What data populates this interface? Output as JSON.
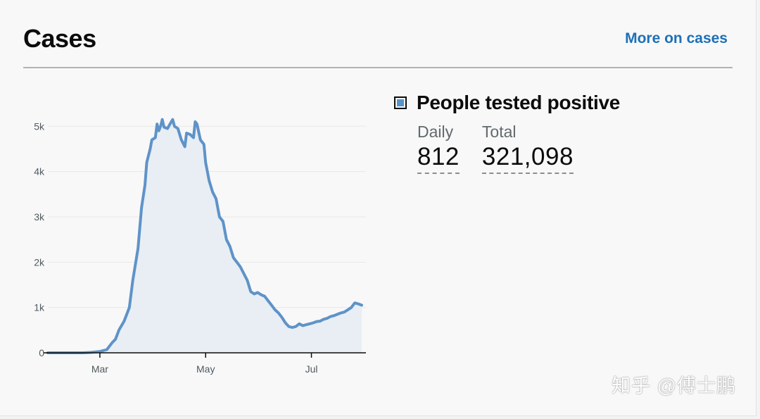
{
  "header": {
    "title": "Cases",
    "more_link": "More on cases"
  },
  "metric": {
    "title": "People tested positive",
    "daily_label": "Daily",
    "daily_value": "812",
    "total_label": "Total",
    "total_value": "321,098"
  },
  "watermark": "知乎 @傅士鹏",
  "colors": {
    "line": "#5e93c8",
    "area": "#e8eef4",
    "link": "#1d70b8",
    "grid": "#e8e8e8"
  },
  "chart_data": {
    "type": "area",
    "title": "",
    "xlabel": "",
    "ylabel": "",
    "y_ticks": [
      0,
      1000,
      2000,
      3000,
      4000,
      5000
    ],
    "y_tick_labels": [
      "0",
      "1k",
      "2k",
      "3k",
      "4k",
      "5k"
    ],
    "x_ticks": [
      "Mar",
      "May",
      "Jul"
    ],
    "ylim": [
      0,
      5300
    ],
    "grid": true,
    "series": [
      {
        "name": "",
        "points": [
          [
            "2020-01-31",
            0
          ],
          [
            "2020-02-10",
            0
          ],
          [
            "2020-02-20",
            0
          ],
          [
            "2020-02-25",
            10
          ],
          [
            "2020-03-01",
            30
          ],
          [
            "2020-03-05",
            70
          ],
          [
            "2020-03-08",
            220
          ],
          [
            "2020-03-10",
            300
          ],
          [
            "2020-03-12",
            500
          ],
          [
            "2020-03-15",
            700
          ],
          [
            "2020-03-18",
            1000
          ],
          [
            "2020-03-20",
            1600
          ],
          [
            "2020-03-23",
            2300
          ],
          [
            "2020-03-25",
            3200
          ],
          [
            "2020-03-27",
            3700
          ],
          [
            "2020-03-28",
            4200
          ],
          [
            "2020-03-30",
            4500
          ],
          [
            "2020-03-31",
            4700
          ],
          [
            "2020-04-02",
            4750
          ],
          [
            "2020-04-03",
            5050
          ],
          [
            "2020-04-04",
            4900
          ],
          [
            "2020-04-05",
            5000
          ],
          [
            "2020-04-06",
            5150
          ],
          [
            "2020-04-07",
            4980
          ],
          [
            "2020-04-09",
            4950
          ],
          [
            "2020-04-10",
            5020
          ],
          [
            "2020-04-12",
            5150
          ],
          [
            "2020-04-13",
            5000
          ],
          [
            "2020-04-15",
            4950
          ],
          [
            "2020-04-17",
            4700
          ],
          [
            "2020-04-19",
            4550
          ],
          [
            "2020-04-20",
            4850
          ],
          [
            "2020-04-22",
            4820
          ],
          [
            "2020-04-24",
            4750
          ],
          [
            "2020-04-25",
            5100
          ],
          [
            "2020-04-26",
            5050
          ],
          [
            "2020-04-28",
            4700
          ],
          [
            "2020-04-30",
            4600
          ],
          [
            "2020-05-01",
            4200
          ],
          [
            "2020-05-03",
            3800
          ],
          [
            "2020-05-05",
            3550
          ],
          [
            "2020-05-07",
            3400
          ],
          [
            "2020-05-09",
            3000
          ],
          [
            "2020-05-11",
            2900
          ],
          [
            "2020-05-13",
            2500
          ],
          [
            "2020-05-15",
            2350
          ],
          [
            "2020-05-17",
            2100
          ],
          [
            "2020-05-19",
            2000
          ],
          [
            "2020-05-21",
            1900
          ],
          [
            "2020-05-23",
            1750
          ],
          [
            "2020-05-25",
            1600
          ],
          [
            "2020-05-27",
            1350
          ],
          [
            "2020-05-29",
            1300
          ],
          [
            "2020-05-31",
            1330
          ],
          [
            "2020-06-02",
            1280
          ],
          [
            "2020-06-04",
            1250
          ],
          [
            "2020-06-06",
            1150
          ],
          [
            "2020-06-08",
            1050
          ],
          [
            "2020-06-10",
            950
          ],
          [
            "2020-06-12",
            880
          ],
          [
            "2020-06-14",
            780
          ],
          [
            "2020-06-16",
            660
          ],
          [
            "2020-06-18",
            580
          ],
          [
            "2020-06-20",
            560
          ],
          [
            "2020-06-22",
            580
          ],
          [
            "2020-06-24",
            640
          ],
          [
            "2020-06-26",
            600
          ],
          [
            "2020-06-28",
            620
          ],
          [
            "2020-06-30",
            640
          ],
          [
            "2020-07-02",
            660
          ],
          [
            "2020-07-04",
            690
          ],
          [
            "2020-07-06",
            700
          ],
          [
            "2020-07-08",
            740
          ],
          [
            "2020-07-10",
            760
          ],
          [
            "2020-07-12",
            800
          ],
          [
            "2020-07-14",
            820
          ],
          [
            "2020-07-16",
            850
          ],
          [
            "2020-07-18",
            880
          ],
          [
            "2020-07-20",
            900
          ],
          [
            "2020-07-22",
            950
          ],
          [
            "2020-07-24",
            1000
          ],
          [
            "2020-07-26",
            1100
          ],
          [
            "2020-07-28",
            1080
          ],
          [
            "2020-07-30",
            1050
          ]
        ]
      }
    ]
  }
}
